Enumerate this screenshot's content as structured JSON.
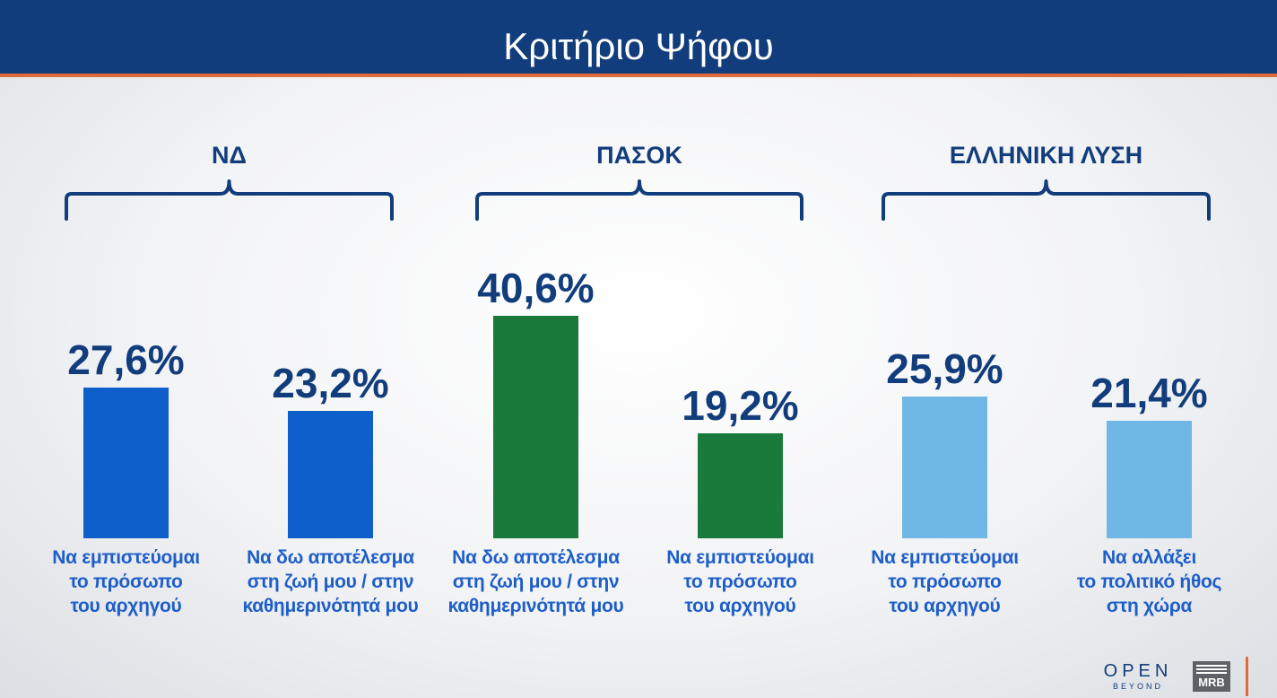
{
  "header": {
    "title": "Κριτήριο Ψήφου"
  },
  "colors": {
    "nd": "#0f5fcb",
    "pasok": "#1a7a3b",
    "el": "#6fb7e4",
    "header": "#123d7c",
    "accent": "#e06a3a"
  },
  "chart_data": {
    "type": "bar",
    "title": "Κριτήριο Ψήφου",
    "groups": [
      {
        "name": "ΝΔ",
        "color": "#0f5fcb",
        "bars": [
          {
            "category_lines": [
              "Να εμπιστεύομαι",
              "το πρόσωπο",
              "του αρχηγού"
            ],
            "value": 27.6,
            "label": "27,6%"
          },
          {
            "category_lines": [
              "Να δω αποτέλεσμα",
              "στη ζωή μου / στην",
              "καθημερινότητά μου"
            ],
            "value": 23.2,
            "label": "23,2%"
          }
        ]
      },
      {
        "name": "ΠΑΣΟΚ",
        "color": "#1a7a3b",
        "bars": [
          {
            "category_lines": [
              "Να δω αποτέλεσμα",
              "στη ζωή μου / στην",
              "καθημερινότητά μου"
            ],
            "value": 40.6,
            "label": "40,6%"
          },
          {
            "category_lines": [
              "Να εμπιστεύομαι",
              "το πρόσωπο",
              "του αρχηγού"
            ],
            "value": 19.2,
            "label": "19,2%"
          }
        ]
      },
      {
        "name": "ΕΛΛΗΝΙΚΗ ΛΥΣΗ",
        "color": "#6fb7e4",
        "bars": [
          {
            "category_lines": [
              "Να εμπιστεύομαι",
              "το πρόσωπο",
              "του αρχηγού"
            ],
            "value": 25.9,
            "label": "25,9%"
          },
          {
            "category_lines": [
              "Να αλλάξει",
              "το πολιτικό ήθος",
              "στη χώρα"
            ],
            "value": 21.4,
            "label": "21,4%"
          }
        ]
      }
    ],
    "ylim": [
      0,
      45
    ],
    "grid": false,
    "legend": "none"
  },
  "logos": {
    "open": "OPEN",
    "beyond": "BEYOND",
    "mrb": "MRB"
  }
}
